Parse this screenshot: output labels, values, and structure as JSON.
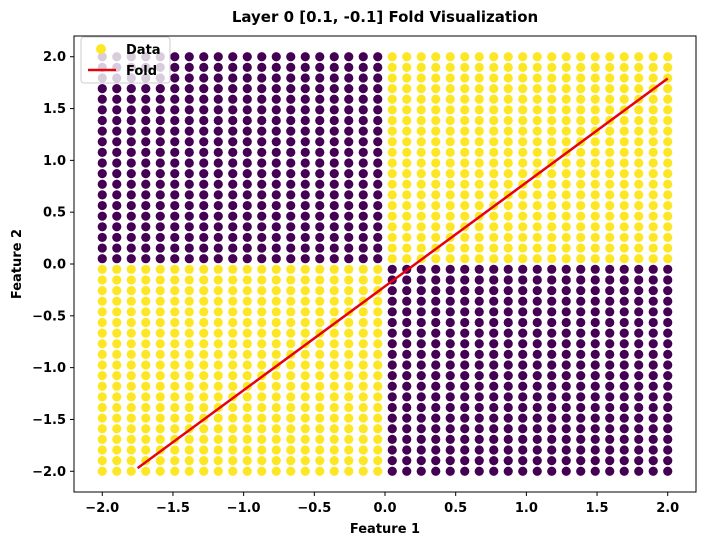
{
  "chart_data": {
    "type": "scatter",
    "title": "Layer 0 [0.1, -0.1] Fold Visualization",
    "xlabel": "Feature 1",
    "ylabel": "Feature 2",
    "xlim": [
      -2.2,
      2.2
    ],
    "ylim": [
      -2.2,
      2.2
    ],
    "x_ticks": [
      -2.0,
      -1.5,
      -1.0,
      -0.5,
      0.0,
      0.5,
      1.0,
      1.5,
      2.0
    ],
    "y_ticks": [
      -2.0,
      -1.5,
      -1.0,
      -0.5,
      0.0,
      0.5,
      1.0,
      1.5,
      2.0
    ],
    "x_tick_labels": [
      "−2.0",
      "−1.5",
      "−1.0",
      "−0.5",
      "0.0",
      "0.5",
      "1.0",
      "1.5",
      "2.0"
    ],
    "y_tick_labels": [
      "−2.0",
      "−1.5",
      "−1.0",
      "−0.5",
      "0.0",
      "0.5",
      "1.0",
      "1.5",
      "2.0"
    ],
    "grid": false,
    "legend_position": "top-left",
    "scatter": {
      "name": "Data",
      "grid_min": -2.0,
      "grid_max": 2.0,
      "grid_count": 40,
      "colors": {
        "positive": "#fde725",
        "negative": "#440154"
      },
      "rule": "color is positive when x*y > 0, negative otherwise"
    },
    "fold_line": {
      "name": "Fold",
      "color": "#e8000b",
      "x": [
        -1.75,
        2.0
      ],
      "y": [
        -1.97,
        1.79
      ]
    }
  }
}
